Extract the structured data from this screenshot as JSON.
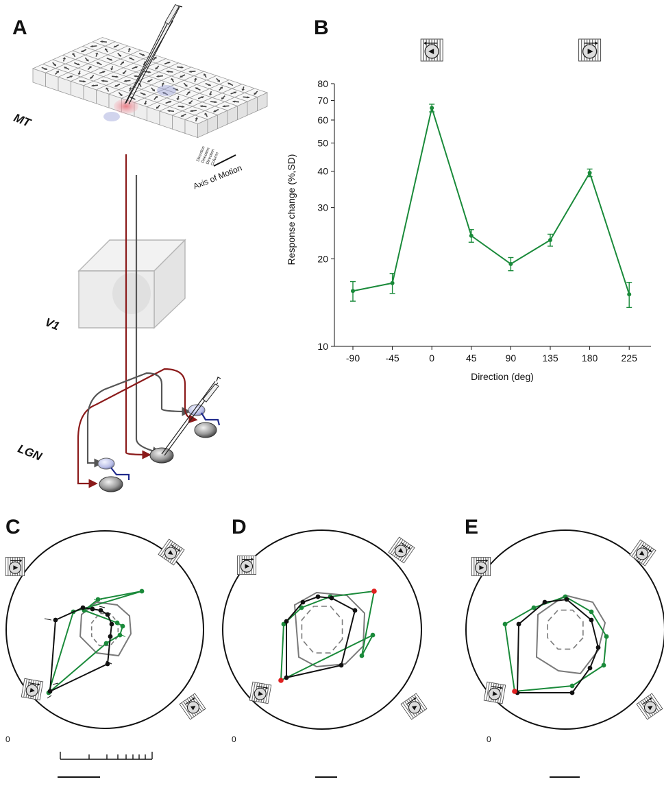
{
  "panels": {
    "a": {
      "letter": "A"
    },
    "b": {
      "letter": "B"
    },
    "c": {
      "letter": "C"
    },
    "d": {
      "letter": "D"
    },
    "e": {
      "letter": "E"
    }
  },
  "schematic": {
    "region_mt": "MT",
    "region_v1": "V1",
    "region_lgn": "LGN",
    "axis_of_motion": "Axis of Motion",
    "column_labels": [
      "Direction",
      "Direction",
      "Direction",
      "Column"
    ],
    "colors": {
      "lgn_projection": "#8b1a1a",
      "v1_projection": "#555555",
      "inhibitory": "#1f2a8c"
    }
  },
  "polar": {
    "zero_label": "0",
    "colors": {
      "green": "#1a8a3a",
      "black": "#111111",
      "gray": "#7a7a7a",
      "highlight": "#e02020"
    }
  },
  "chart_data": [
    {
      "type": "line",
      "panel": "B",
      "title": "",
      "xlabel": "Direction (deg)",
      "ylabel": "Response change (%,SD)",
      "yscale": "log",
      "ylim": [
        10,
        80
      ],
      "x_ticks": [
        -90,
        -45,
        0,
        45,
        90,
        135,
        180,
        225
      ],
      "y_ticks": [
        10,
        20,
        30,
        40,
        50,
        60,
        70,
        80
      ],
      "legend": "none",
      "grid": false,
      "series": [
        {
          "color": "#1a8a3a",
          "x": [
            -90,
            -45,
            0,
            45,
            90,
            135,
            180,
            225
          ],
          "y": [
            15.5,
            16.5,
            66,
            24,
            19.2,
            23.2,
            39.5,
            15.1
          ],
          "err": [
            1.2,
            1.3,
            2.0,
            1.2,
            1.0,
            1.1,
            1.2,
            1.5
          ]
        }
      ],
      "stimulus_icons": [
        0,
        180
      ]
    }
  ]
}
